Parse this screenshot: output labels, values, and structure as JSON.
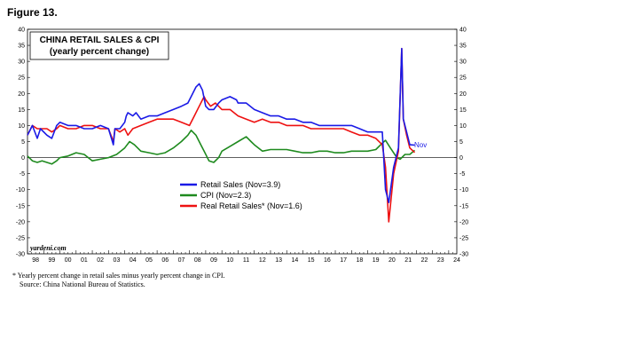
{
  "figure_label": "Figure 13.",
  "footnote": {
    "line1": "*   Yearly percent change in retail sales minus yearly percent change in CPI.",
    "line2": "Source: China National Bureau of Statistics."
  },
  "chart_data": {
    "type": "line",
    "title": "CHINA RETAIL SALES & CPI",
    "subtitle": "(yearly percent change)",
    "source_label": "yardeni.com",
    "end_label": "Nov",
    "ylim": [
      -30,
      40
    ],
    "y_ticks": [
      40,
      35,
      30,
      25,
      20,
      15,
      10,
      5,
      0,
      -5,
      -10,
      -15,
      -20,
      -25,
      -30
    ],
    "xlim": [
      1998,
      2024.5
    ],
    "x_tick_labels": [
      "98",
      "99",
      "00",
      "01",
      "02",
      "03",
      "04",
      "05",
      "06",
      "07",
      "08",
      "09",
      "10",
      "11",
      "12",
      "13",
      "14",
      "15",
      "16",
      "17",
      "18",
      "19",
      "20",
      "21",
      "22",
      "23",
      "24"
    ],
    "grid": false,
    "legend_position": "center",
    "series": [
      {
        "name": "Retail Sales (Nov=3.9)",
        "color": "#1a1ae6",
        "x": [
          1998.0,
          1998.3,
          1998.6,
          1998.8,
          1999.2,
          1999.5,
          1999.8,
          2000.0,
          2000.5,
          2001.0,
          2001.5,
          2002.0,
          2002.5,
          2003.0,
          2003.3,
          2003.4,
          2003.7,
          2004.0,
          2004.1,
          2004.2,
          2004.5,
          2004.7,
          2005.0,
          2005.5,
          2006.0,
          2006.5,
          2007.0,
          2007.5,
          2007.9,
          2008.2,
          2008.4,
          2008.6,
          2008.8,
          2009.0,
          2009.2,
          2009.5,
          2009.8,
          2010.0,
          2010.5,
          2010.9,
          2011.0,
          2011.5,
          2012.0,
          2012.5,
          2013.0,
          2013.5,
          2014.0,
          2014.5,
          2015.0,
          2015.5,
          2016.0,
          2016.5,
          2017.0,
          2017.5,
          2018.0,
          2018.5,
          2019.0,
          2019.5,
          2019.9,
          2020.1,
          2020.3,
          2020.6,
          2020.9,
          2021.1,
          2021.2,
          2021.4,
          2021.6,
          2021.9
        ],
        "values": [
          7,
          10,
          6,
          9,
          7,
          6,
          10,
          11,
          10,
          10,
          9,
          9,
          10,
          9,
          4,
          9,
          9,
          11,
          13,
          14,
          13,
          14,
          12,
          13,
          13,
          14,
          15,
          16,
          17,
          20,
          22,
          23,
          21,
          16,
          15,
          15,
          17,
          18,
          19,
          18,
          17,
          17,
          15,
          14,
          13,
          13,
          12,
          12,
          11,
          11,
          10,
          10,
          10,
          10,
          10,
          9,
          8,
          8,
          8,
          -10,
          -14,
          -3,
          3,
          34,
          12,
          8,
          4,
          3.9
        ]
      },
      {
        "name": "CPI (Nov=2.3)",
        "color": "#1e8a1e",
        "x": [
          1998.0,
          1998.3,
          1998.6,
          1998.9,
          1999.2,
          1999.5,
          1999.8,
          2000.0,
          2000.5,
          2001.0,
          2001.5,
          2002.0,
          2002.5,
          2003.0,
          2003.5,
          2004.0,
          2004.3,
          2004.6,
          2005.0,
          2005.5,
          2006.0,
          2006.5,
          2007.0,
          2007.5,
          2007.9,
          2008.1,
          2008.4,
          2008.7,
          2008.9,
          2009.2,
          2009.5,
          2009.8,
          2010.0,
          2010.5,
          2011.0,
          2011.5,
          2011.8,
          2012.0,
          2012.5,
          2013.0,
          2013.5,
          2014.0,
          2014.5,
          2015.0,
          2015.5,
          2016.0,
          2016.5,
          2017.0,
          2017.5,
          2018.0,
          2018.5,
          2019.0,
          2019.5,
          2019.9,
          2020.1,
          2020.4,
          2020.8,
          2021.0,
          2021.3,
          2021.6,
          2021.9
        ],
        "values": [
          0.5,
          -1,
          -1.5,
          -1,
          -1.5,
          -2,
          -1,
          0,
          0.5,
          1.5,
          1,
          -1,
          -0.5,
          0,
          1,
          3,
          5,
          4,
          2,
          1.5,
          1,
          1.5,
          3,
          5,
          7,
          8.5,
          7,
          4,
          2,
          -1,
          -1.5,
          0,
          2,
          3.5,
          5,
          6.5,
          5,
          4,
          2,
          2.5,
          2.5,
          2.5,
          2,
          1.5,
          1.5,
          2,
          2,
          1.5,
          1.5,
          2,
          2,
          2,
          2.5,
          4.5,
          5.4,
          3,
          0,
          -0.5,
          1,
          1,
          2.3
        ]
      },
      {
        "name": "Real Retail Sales* (Nov=1.6)",
        "color": "#ee1111",
        "x": [
          1998.0,
          1998.3,
          1998.6,
          1998.9,
          1999.2,
          1999.5,
          1999.8,
          2000.0,
          2000.5,
          2001.0,
          2001.5,
          2002.0,
          2002.5,
          2003.0,
          2003.3,
          2003.4,
          2003.7,
          2004.0,
          2004.2,
          2004.5,
          2005.0,
          2005.5,
          2006.0,
          2006.5,
          2007.0,
          2007.5,
          2008.0,
          2008.3,
          2008.6,
          2008.9,
          2009.0,
          2009.3,
          2009.6,
          2010.0,
          2010.5,
          2011.0,
          2011.5,
          2012.0,
          2012.5,
          2013.0,
          2013.5,
          2014.0,
          2014.5,
          2015.0,
          2015.5,
          2016.0,
          2016.5,
          2017.0,
          2017.5,
          2018.0,
          2018.5,
          2019.0,
          2019.5,
          2019.9,
          2020.1,
          2020.3,
          2020.6,
          2020.9,
          2021.1,
          2021.2,
          2021.4,
          2021.6,
          2021.9
        ],
        "values": [
          7,
          10,
          9,
          9,
          9,
          8,
          9,
          10,
          9,
          9,
          10,
          10,
          9,
          9,
          5,
          9,
          8,
          9,
          7,
          9,
          10,
          11,
          12,
          12,
          12,
          11,
          10,
          13,
          16,
          19,
          18,
          16,
          17,
          15,
          15,
          13,
          12,
          11,
          12,
          11,
          11,
          10,
          10,
          10,
          9,
          9,
          9,
          9,
          9,
          8,
          7,
          7,
          6,
          4,
          -3,
          -20,
          -5,
          2,
          34,
          12,
          7,
          3,
          1.6
        ]
      }
    ]
  }
}
